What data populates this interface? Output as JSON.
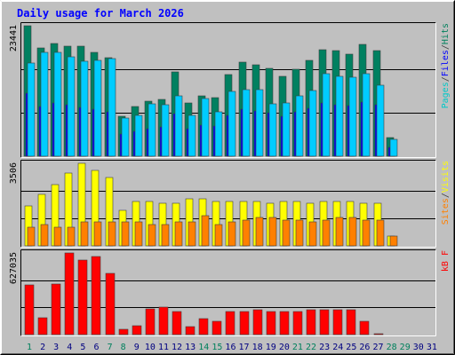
{
  "chart_data": [
    {
      "type": "bar",
      "title": "Daily usage for March 2026",
      "categories": [
        "1",
        "2",
        "3",
        "4",
        "5",
        "6",
        "7",
        "8",
        "9",
        "10",
        "11",
        "12",
        "13",
        "14",
        "15",
        "16",
        "17",
        "18",
        "19",
        "20",
        "21",
        "22",
        "23",
        "24",
        "25",
        "26",
        "27",
        "28",
        "29",
        "30",
        "31"
      ],
      "y_max_label": "23441",
      "ylim": [
        0,
        23441
      ],
      "legend": [
        {
          "text": "Pages",
          "color": "#00c8c8"
        },
        {
          "text": "/",
          "color": "#404040"
        },
        {
          "text": "Files",
          "color": "#0000ff"
        },
        {
          "text": "/",
          "color": "#404040"
        },
        {
          "text": "Hits",
          "color": "#00805c"
        }
      ],
      "series": [
        {
          "color": "#008060",
          "values": [
            23441,
            19500,
            20200,
            19800,
            19700,
            18600,
            17700,
            7100,
            9000,
            9900,
            10200,
            15100,
            9600,
            10900,
            10600,
            14600,
            16900,
            16500,
            15800,
            14400,
            15600,
            17200,
            19200,
            18900,
            18400,
            20100,
            18900,
            3300,
            0,
            0,
            0
          ]
        },
        {
          "color": "#0000ff",
          "values": [
            11300,
            9000,
            9500,
            9200,
            8700,
            8500,
            8000,
            4000,
            4500,
            5000,
            5200,
            7600,
            5000,
            5600,
            5500,
            7300,
            8400,
            8100,
            7800,
            7100,
            7900,
            8600,
            9500,
            9300,
            9100,
            9800,
            9300,
            1600,
            0,
            0,
            0
          ]
        },
        {
          "color": "#00ccff",
          "values": [
            16800,
            18700,
            18600,
            17800,
            17100,
            17300,
            17600,
            6800,
            7400,
            9400,
            9300,
            10800,
            7300,
            10400,
            7900,
            11600,
            12000,
            11900,
            9400,
            9600,
            10900,
            11800,
            14800,
            14400,
            14200,
            14800,
            12800,
            3100,
            0,
            0,
            0
          ]
        }
      ]
    },
    {
      "type": "bar",
      "categories": [
        "1",
        "2",
        "3",
        "4",
        "5",
        "6",
        "7",
        "8",
        "9",
        "10",
        "11",
        "12",
        "13",
        "14",
        "15",
        "16",
        "17",
        "18",
        "19",
        "20",
        "21",
        "22",
        "23",
        "24",
        "25",
        "26",
        "27",
        "28",
        "29",
        "30",
        "31"
      ],
      "y_max_label": "3506",
      "ylim": [
        0,
        3506
      ],
      "legend": [
        {
          "text": "Sites",
          "color": "#ff8000"
        },
        {
          "text": "/",
          "color": "#404040"
        },
        {
          "text": "Visits",
          "color": "#ffff00"
        }
      ],
      "series": [
        {
          "color": "#ffff00",
          "values": [
            1700,
            2200,
            2600,
            3100,
            3506,
            3200,
            2900,
            1500,
            1900,
            1900,
            1800,
            1800,
            2000,
            2000,
            1900,
            1900,
            1900,
            1900,
            1800,
            1900,
            1900,
            1800,
            1900,
            1900,
            1900,
            1800,
            1800,
            400,
            0,
            0,
            0
          ]
        },
        {
          "color": "#ff8000",
          "values": [
            800,
            900,
            800,
            800,
            1000,
            1000,
            1000,
            1000,
            1000,
            900,
            900,
            1000,
            1000,
            1300,
            900,
            1000,
            1100,
            1200,
            1200,
            1100,
            1100,
            1000,
            1100,
            1200,
            1200,
            1100,
            1100,
            400,
            0,
            0,
            0
          ]
        }
      ]
    },
    {
      "type": "bar",
      "categories": [
        "1",
        "2",
        "3",
        "4",
        "5",
        "6",
        "7",
        "8",
        "9",
        "10",
        "11",
        "12",
        "13",
        "14",
        "15",
        "16",
        "17",
        "18",
        "19",
        "20",
        "21",
        "22",
        "23",
        "24",
        "25",
        "26",
        "27",
        "28",
        "29",
        "30",
        "31"
      ],
      "y_max_label": "627035",
      "ylim": [
        0,
        627035
      ],
      "legend": [
        {
          "text": "kB F",
          "color": "#ff0000"
        }
      ],
      "series": [
        {
          "color": "#ff0000",
          "values": [
            380000,
            130000,
            390000,
            627035,
            570000,
            600000,
            470000,
            40000,
            70000,
            200000,
            210000,
            180000,
            60000,
            120000,
            100000,
            180000,
            180000,
            190000,
            180000,
            180000,
            180000,
            190000,
            190000,
            190000,
            190000,
            100000,
            10000,
            0,
            0,
            0,
            0
          ]
        }
      ]
    }
  ],
  "x_axis": {
    "labels": [
      "1",
      "2",
      "3",
      "4",
      "5",
      "6",
      "7",
      "8",
      "9",
      "10",
      "11",
      "12",
      "13",
      "14",
      "15",
      "16",
      "17",
      "18",
      "19",
      "20",
      "21",
      "22",
      "23",
      "24",
      "25",
      "26",
      "27",
      "28",
      "29",
      "30",
      "31"
    ],
    "weekend_color": "#00805c",
    "weekday_color": "#000080",
    "weekend_days": [
      1,
      7,
      8,
      14,
      15,
      21,
      22,
      28,
      29
    ]
  }
}
